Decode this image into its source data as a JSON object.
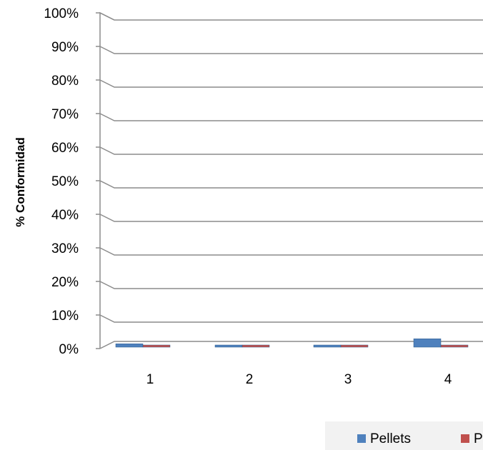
{
  "chart_data": {
    "type": "bar",
    "ylabel": "% Conformidad",
    "xlabel": "",
    "categories": [
      "1",
      "2",
      "3",
      "4"
    ],
    "y_ticks": [
      "0%",
      "10%",
      "20%",
      "30%",
      "40%",
      "50%",
      "60%",
      "70%",
      "80%",
      "90%",
      "100%"
    ],
    "ylim": [
      0,
      100
    ],
    "grid": true,
    "legend_position": "bottom",
    "series": [
      {
        "name": "Pellets",
        "values": [
          1,
          0.5,
          0.5,
          2.5
        ],
        "color": "#4F81BD"
      },
      {
        "name": "P",
        "values": [
          0.5,
          0.5,
          0.5,
          0.5
        ],
        "color": "#C0504D"
      }
    ]
  }
}
